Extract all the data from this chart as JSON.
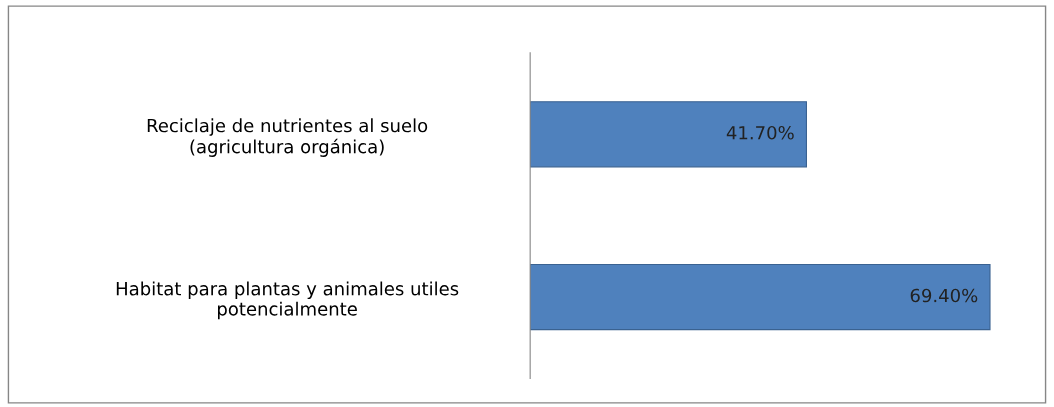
{
  "chart_data": {
    "type": "bar",
    "orientation": "horizontal",
    "categories": [
      "Reciclaje de nutrientes al suelo\n(agricultura orgánica)",
      "Habitat para plantas y animales utiles\npotencialmente"
    ],
    "values": [
      41.7,
      69.4
    ],
    "value_labels": [
      "41.70%",
      "69.40%"
    ],
    "color": "#4f81bd",
    "grid": false,
    "legend": false,
    "tick_labels": "y"
  }
}
